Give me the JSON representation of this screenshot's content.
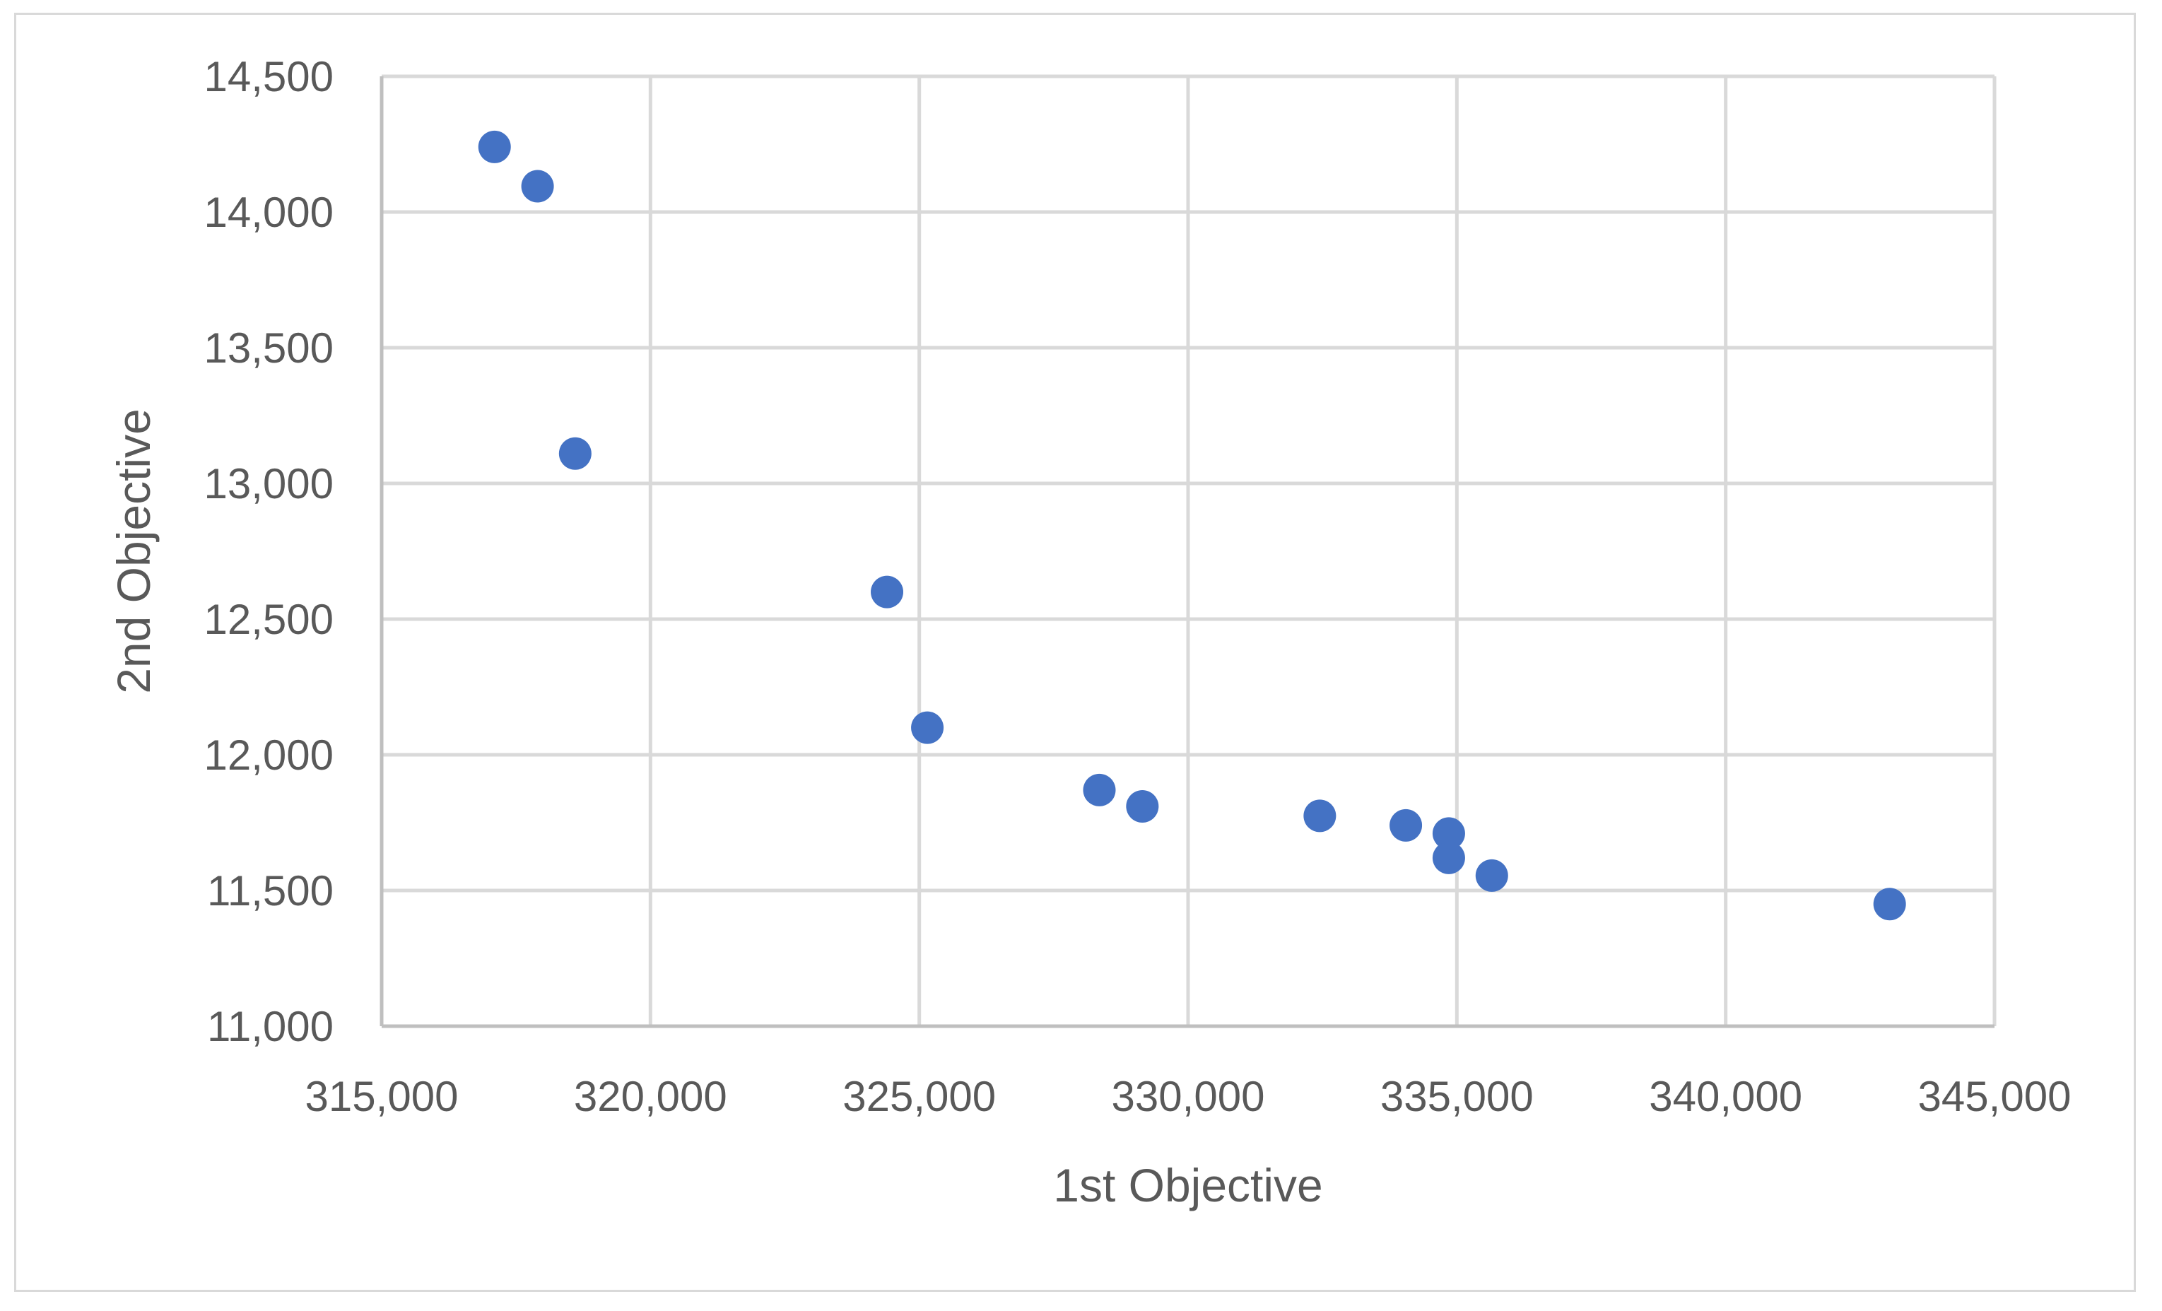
{
  "chart_data": {
    "type": "scatter",
    "title": "",
    "xlabel": "1st Objective",
    "ylabel": "2nd Objective",
    "xlim": [
      315000,
      345000
    ],
    "ylim": [
      11000,
      14500
    ],
    "xticks": [
      315000,
      320000,
      325000,
      330000,
      335000,
      340000,
      345000
    ],
    "yticks": [
      11000,
      11500,
      12000,
      12500,
      13000,
      13500,
      14000,
      14500
    ],
    "xtick_labels": [
      "315,000",
      "320,000",
      "325,000",
      "330,000",
      "335,000",
      "340,000",
      "345,000"
    ],
    "ytick_labels": [
      "11,000",
      "11,500",
      "12,000",
      "12,500",
      "13,000",
      "13,500",
      "14,000",
      "14,500"
    ],
    "grid": true,
    "legend": "none",
    "marker_color": "#4472c4",
    "points": [
      {
        "x": 317100,
        "y": 14240
      },
      {
        "x": 317900,
        "y": 14095
      },
      {
        "x": 318600,
        "y": 13110
      },
      {
        "x": 324400,
        "y": 12600
      },
      {
        "x": 325150,
        "y": 12100
      },
      {
        "x": 328350,
        "y": 11870
      },
      {
        "x": 329150,
        "y": 11810
      },
      {
        "x": 332450,
        "y": 11775
      },
      {
        "x": 334050,
        "y": 11740
      },
      {
        "x": 334850,
        "y": 11710
      },
      {
        "x": 334850,
        "y": 11620
      },
      {
        "x": 335650,
        "y": 11555
      },
      {
        "x": 343050,
        "y": 11450
      }
    ]
  }
}
